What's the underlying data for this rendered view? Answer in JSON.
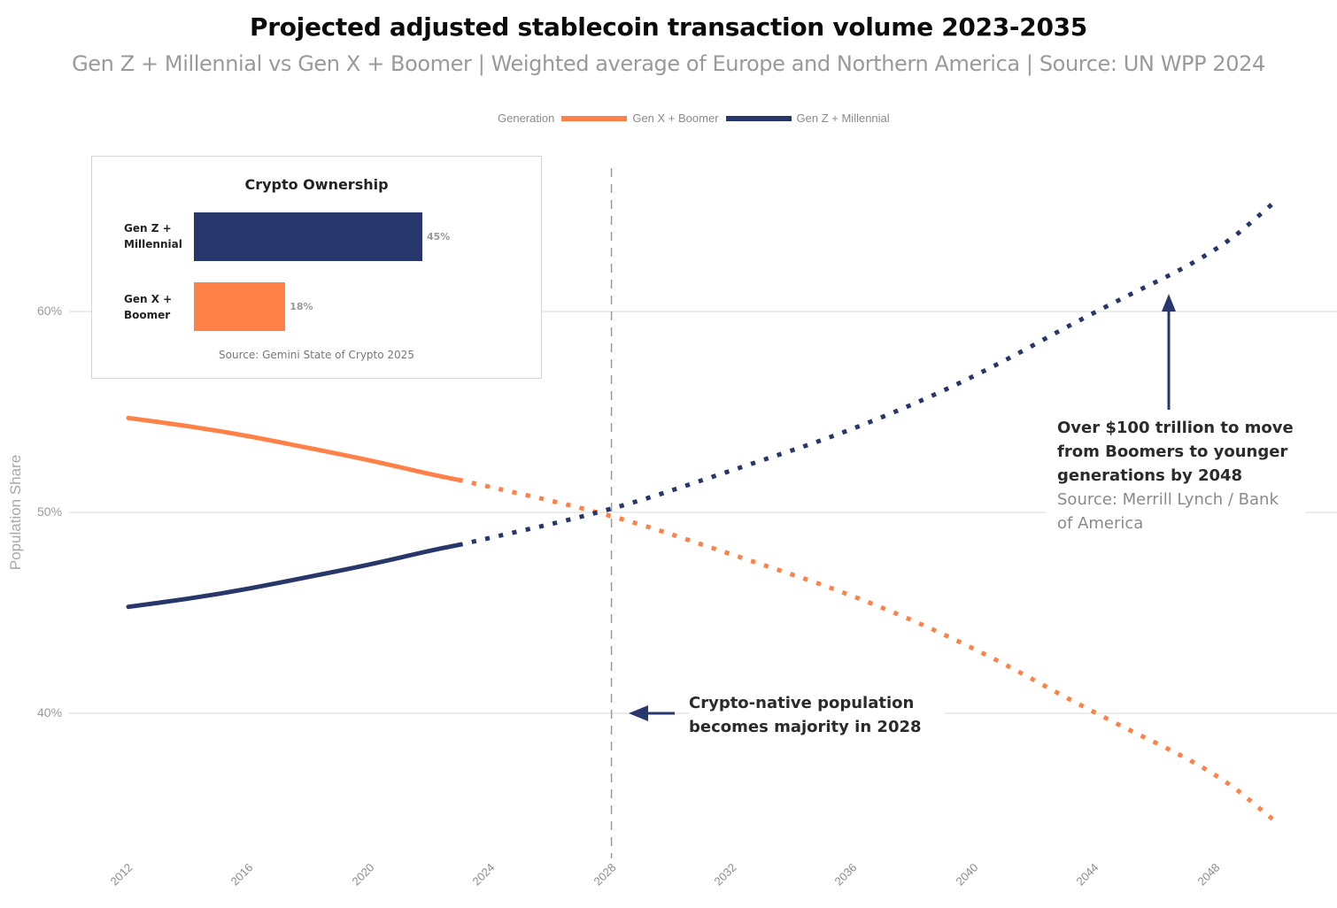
{
  "header": {
    "title": "Projected adjusted stablecoin transaction volume 2023-2035",
    "subtitle": "Gen Z + Millennial vs Gen X + Boomer | Weighted average of Europe and Northern America | Source: UN WPP 2024"
  },
  "legend": {
    "title": "Generation",
    "items": [
      {
        "label": "Gen X + Boomer",
        "color": "#FF8147"
      },
      {
        "label": "Gen Z + Millennial",
        "color": "#27366B"
      }
    ]
  },
  "inset": {
    "title": "Crypto Ownership",
    "bars": [
      {
        "label_line1": "Gen Z +",
        "label_line2": "Millennial",
        "value": 45,
        "value_label": "45%",
        "color": "#27366B"
      },
      {
        "label_line1": "Gen X +",
        "label_line2": "Boomer",
        "value": 18,
        "value_label": "18%",
        "color": "#FF8147"
      }
    ],
    "source": "Source: Gemini State of Crypto 2025"
  },
  "annotations": {
    "majority": {
      "line1": "Crypto-native population",
      "line2": "becomes majority in 2028",
      "year": 2028
    },
    "wealth": {
      "bold_line1": "Over $100 trillion to move",
      "bold_line2": "from Boomers to younger",
      "bold_line3": "generations by 2048",
      "source_line1": "Source: Merrill Lynch / Bank",
      "source_line2": "of America"
    }
  },
  "chart_data": {
    "type": "line",
    "title": "Projected adjusted stablecoin transaction volume 2023-2035",
    "subtitle": "Gen Z + Millennial vs Gen X + Boomer | Weighted average of Europe and Northern America | Source: UN WPP 2024",
    "xlabel": "",
    "ylabel": "Population Share",
    "xlim": [
      2012,
      2050
    ],
    "ylim": [
      33,
      68
    ],
    "x_ticks": [
      2012,
      2016,
      2020,
      2024,
      2028,
      2032,
      2036,
      2040,
      2044,
      2048
    ],
    "x_tick_labels": [
      "2012",
      "2016",
      "2020",
      "2024",
      "2028",
      "2032",
      "2036",
      "2040",
      "2044",
      "2048"
    ],
    "y_ticks": [
      40,
      50,
      60
    ],
    "y_tick_labels": [
      "40%",
      "50%",
      "60%"
    ],
    "grid": "horizontal",
    "legend_position": "top",
    "projection_start": 2023,
    "reference_line": {
      "x": 2028,
      "style": "dashed"
    },
    "series": [
      {
        "name": "Gen X + Boomer",
        "color": "#FF8147",
        "x": [
          2012,
          2014,
          2016,
          2018,
          2020,
          2022,
          2023,
          2028,
          2032,
          2036,
          2040,
          2044,
          2048,
          2050
        ],
        "values": [
          54.7,
          54.3,
          53.8,
          53.2,
          52.6,
          51.9,
          51.6,
          49.9,
          47.9,
          45.9,
          43.3,
          40.0,
          37.1,
          34.6
        ]
      },
      {
        "name": "Gen Z + Millennial",
        "color": "#27366B",
        "x": [
          2012,
          2014,
          2016,
          2018,
          2020,
          2022,
          2023,
          2028,
          2032,
          2036,
          2040,
          2044,
          2048,
          2050
        ],
        "values": [
          45.3,
          45.7,
          46.2,
          46.8,
          47.4,
          48.1,
          48.4,
          50.1,
          52.1,
          54.1,
          56.7,
          60.0,
          62.9,
          65.5
        ]
      }
    ],
    "annotations": [
      {
        "text": "Crypto-native population becomes majority in 2028",
        "x": 2028,
        "y": 40
      },
      {
        "text": "Over $100 trillion to move from Boomers to younger generations by 2048 — Source: Merrill Lynch / Bank of America",
        "x": 2046.5,
        "y": 61
      }
    ]
  }
}
